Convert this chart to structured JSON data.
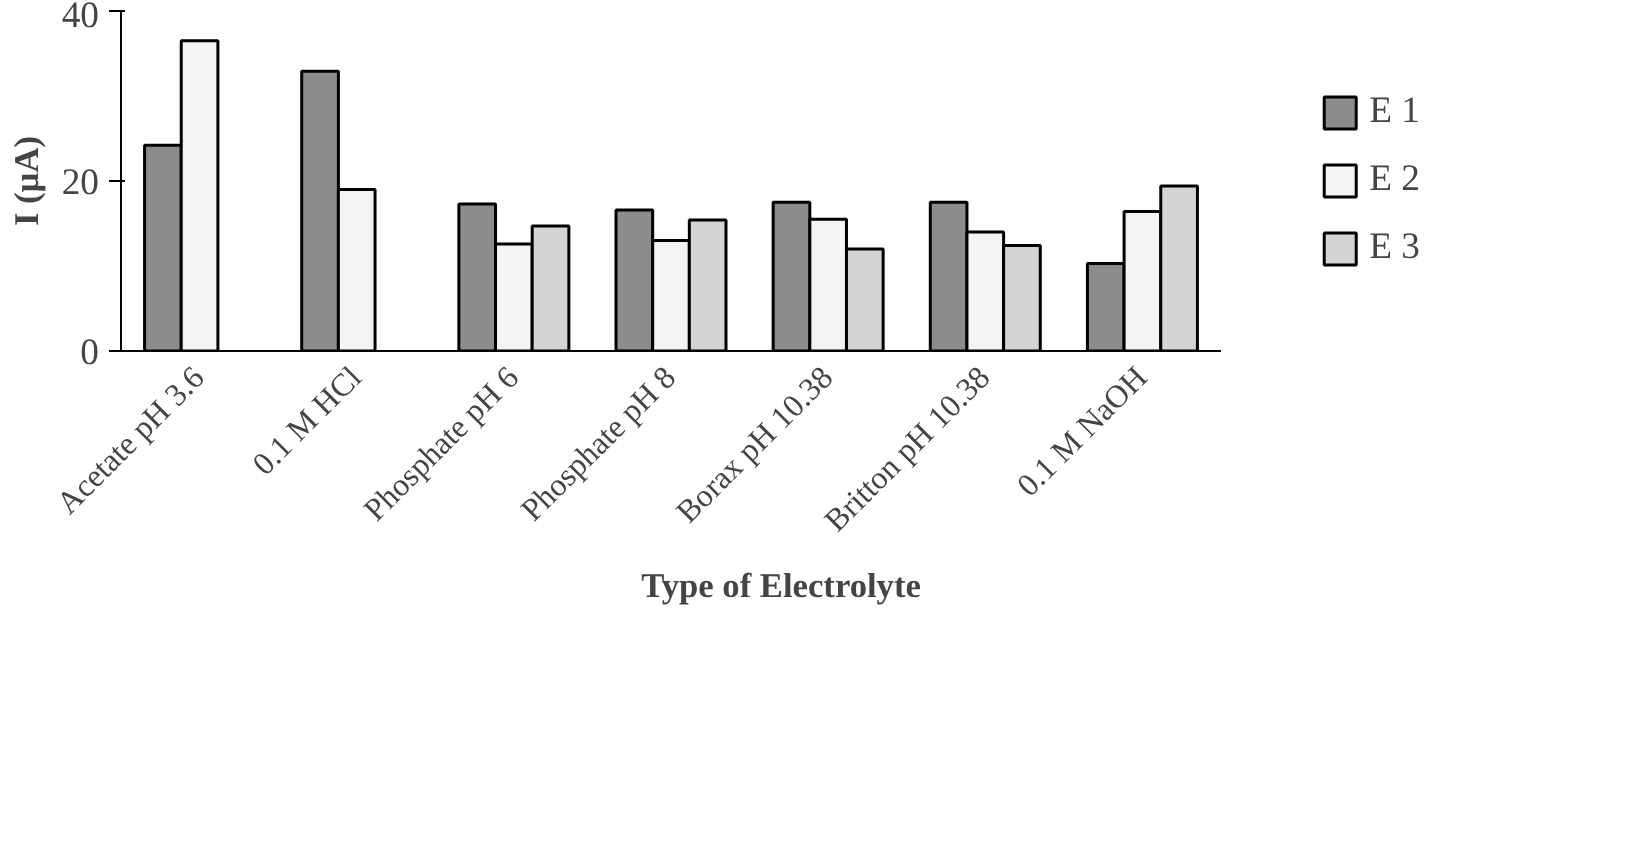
{
  "chart_data": {
    "type": "bar",
    "xlabel": "Type of Electrolyte",
    "ylabel": "I (µA)",
    "categories": [
      "Acetate pH 3.6",
      "0.1 M HCl",
      "Phosphate pH 6",
      "Phosphate pH 8",
      "Borax pH 10.38",
      "Britton pH 10.38",
      "0.1 M NaOH"
    ],
    "series": [
      {
        "name": "E 1",
        "color": "#8c8c8c",
        "values": [
          24.2,
          32.9,
          17.3,
          16.6,
          17.5,
          17.5,
          10.3
        ]
      },
      {
        "name": "E 2",
        "color": "#f4f4f4",
        "values": [
          36.5,
          19.0,
          12.6,
          13.0,
          15.5,
          14.0,
          16.4
        ]
      },
      {
        "name": "E 3",
        "color": "#d4d4d4",
        "values": [
          null,
          null,
          14.7,
          15.4,
          12.0,
          12.4,
          19.4
        ]
      }
    ],
    "ylim": [
      0,
      40
    ],
    "yticks": [
      0,
      20,
      40
    ],
    "grid": false,
    "legend": "right"
  }
}
